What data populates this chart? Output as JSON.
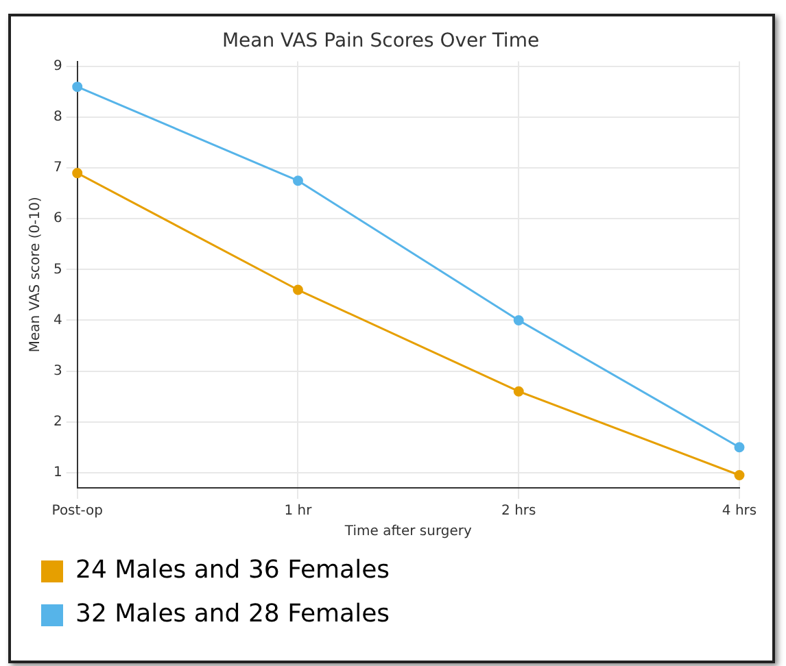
{
  "chart_data": {
    "type": "line",
    "title": "Mean VAS Pain Scores Over Time",
    "xlabel": "Time after surgery",
    "ylabel": "Mean VAS score (0-10)",
    "categories": [
      "Post-op",
      "1 hr",
      "2 hrs",
      "4 hrs"
    ],
    "series": [
      {
        "name": "24 Males and 36 Females",
        "color": "#e69f00",
        "values": [
          6.9,
          4.6,
          2.6,
          0.95
        ]
      },
      {
        "name": "32 Males and 28 Females",
        "color": "#56b4e9",
        "values": [
          8.6,
          6.75,
          4.0,
          1.5
        ]
      }
    ],
    "ylim": [
      0.7,
      9.1
    ],
    "yticks": [
      1,
      2,
      3,
      4,
      5,
      6,
      7,
      8,
      9
    ],
    "grid": true,
    "legend": "bottom",
    "marker": "circle",
    "line_style": "solid"
  }
}
